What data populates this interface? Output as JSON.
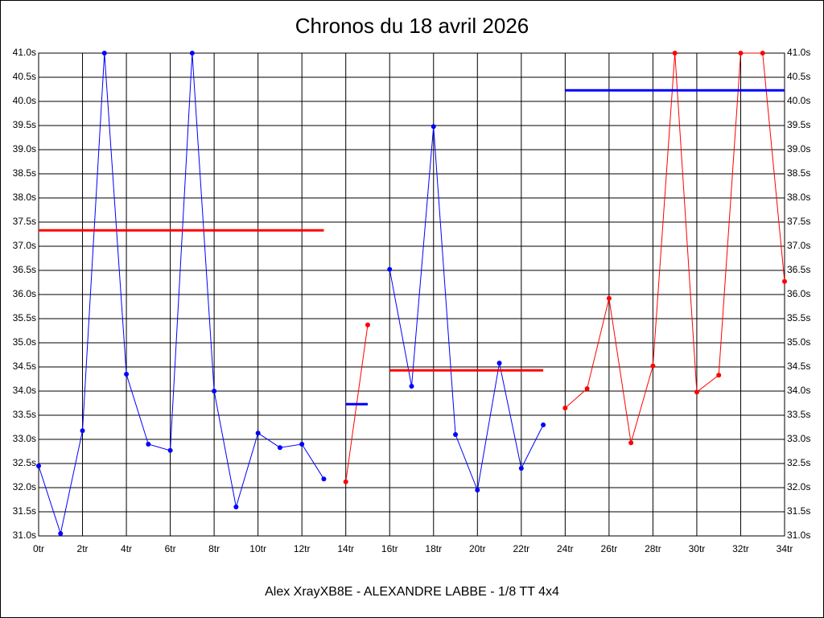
{
  "chart_data": {
    "type": "line",
    "title": "Chronos du 18 avril 2026",
    "subtitle": "Alex XrayXB8E - ALEXANDRE LABBE - 1/8 TT 4x4",
    "xlim": [
      0,
      34
    ],
    "ylim": [
      31,
      41
    ],
    "grid": true,
    "xticks": [
      {
        "value": 0,
        "label": "0tr"
      },
      {
        "value": 2,
        "label": "2tr"
      },
      {
        "value": 4,
        "label": "4tr"
      },
      {
        "value": 6,
        "label": "6tr"
      },
      {
        "value": 8,
        "label": "8tr"
      },
      {
        "value": 10,
        "label": "10tr"
      },
      {
        "value": 12,
        "label": "12tr"
      },
      {
        "value": 14,
        "label": "14tr"
      },
      {
        "value": 16,
        "label": "16tr"
      },
      {
        "value": 18,
        "label": "18tr"
      },
      {
        "value": 20,
        "label": "20tr"
      },
      {
        "value": 22,
        "label": "22tr"
      },
      {
        "value": 24,
        "label": "24tr"
      },
      {
        "value": 26,
        "label": "26tr"
      },
      {
        "value": 28,
        "label": "28tr"
      },
      {
        "value": 30,
        "label": "30tr"
      },
      {
        "value": 32,
        "label": "32tr"
      },
      {
        "value": 34,
        "label": "34tr"
      }
    ],
    "yticks": [
      {
        "value": 31,
        "label": "31.0s"
      },
      {
        "value": 31.5,
        "label": "31.5s"
      },
      {
        "value": 32,
        "label": "32.0s"
      },
      {
        "value": 32.5,
        "label": "32.5s"
      },
      {
        "value": 33,
        "label": "33.0s"
      },
      {
        "value": 33.5,
        "label": "33.5s"
      },
      {
        "value": 34,
        "label": "34.0s"
      },
      {
        "value": 34.5,
        "label": "34.5s"
      },
      {
        "value": 35,
        "label": "35.0s"
      },
      {
        "value": 35.5,
        "label": "35.5s"
      },
      {
        "value": 36,
        "label": "36.0s"
      },
      {
        "value": 36.5,
        "label": "36.5s"
      },
      {
        "value": 37,
        "label": "37.0s"
      },
      {
        "value": 37.5,
        "label": "37.5s"
      },
      {
        "value": 38,
        "label": "38.0s"
      },
      {
        "value": 38.5,
        "label": "38.5s"
      },
      {
        "value": 39,
        "label": "39.0s"
      },
      {
        "value": 39.5,
        "label": "39.5s"
      },
      {
        "value": 40,
        "label": "40.0s"
      },
      {
        "value": 40.5,
        "label": "40.5s"
      },
      {
        "value": 41,
        "label": "41.0s"
      }
    ],
    "series": [
      {
        "color": "#0000ff",
        "average_color": "#ff0000",
        "average": 37.33,
        "x": [
          0,
          1,
          2,
          3,
          4,
          5,
          6,
          7,
          8,
          9,
          10,
          11,
          12,
          13
        ],
        "values": [
          32.45,
          31.05,
          33.18,
          41.0,
          34.35,
          32.9,
          32.77,
          41.0,
          34.0,
          31.6,
          33.13,
          32.83,
          32.9,
          32.18
        ]
      },
      {
        "color": "#ff0000",
        "average_color": "#0000ff",
        "average": 33.73,
        "x": [
          14,
          15
        ],
        "values": [
          32.12,
          35.37
        ]
      },
      {
        "color": "#0000ff",
        "average_color": "#ff0000",
        "average": 34.43,
        "x": [
          16,
          17,
          18,
          19,
          20,
          21,
          22,
          23
        ],
        "values": [
          36.52,
          34.1,
          39.48,
          33.1,
          31.95,
          34.58,
          32.4,
          33.3
        ]
      },
      {
        "color": "#ff0000",
        "average_color": "#0000ff",
        "average": 40.23,
        "x": [
          24,
          25,
          26,
          27,
          28,
          29,
          30,
          31,
          32,
          33,
          34
        ],
        "values": [
          33.65,
          34.05,
          35.92,
          32.93,
          34.52,
          41.0,
          33.98,
          34.33,
          41.0,
          41.0,
          36.27
        ]
      }
    ]
  }
}
